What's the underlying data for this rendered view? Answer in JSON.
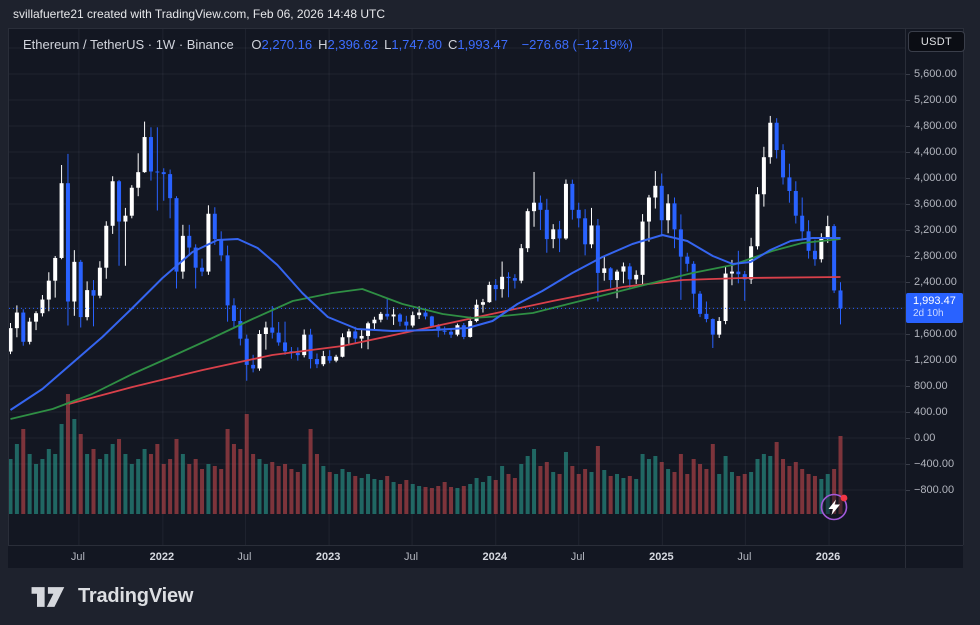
{
  "top_bar": {
    "attribution": "svillafuerte21 created with TradingView.com, Feb 06, 2026 14:48 UTC"
  },
  "header": {
    "title_full": "Ethereum / TetherUS · 1W · Binance",
    "ohlc": [
      {
        "label": "O",
        "value": "2,270.16"
      },
      {
        "label": "H",
        "value": "2,396.62"
      },
      {
        "label": "L",
        "value": "1,747.80"
      },
      {
        "label": "C",
        "value": "1,993.47"
      }
    ],
    "change": "−276.68 (−12.19%)"
  },
  "currency_button": "USDT",
  "price_axis": {
    "ticks": [
      {
        "label": "5,600.00",
        "price": 5600
      },
      {
        "label": "5,200.00",
        "price": 5200
      },
      {
        "label": "4,800.00",
        "price": 4800
      },
      {
        "label": "4,400.00",
        "price": 4400
      },
      {
        "label": "4,000.00",
        "price": 4000
      },
      {
        "label": "3,600.00",
        "price": 3600
      },
      {
        "label": "3,200.00",
        "price": 3200
      },
      {
        "label": "2,800.00",
        "price": 2800
      },
      {
        "label": "2,400.00",
        "price": 2400
      },
      {
        "label": "2,000.00",
        "price": 2000
      },
      {
        "label": "1,600.00",
        "price": 1600
      },
      {
        "label": "1,200.00",
        "price": 1200
      },
      {
        "label": "800.00",
        "price": 800
      },
      {
        "label": "400.00",
        "price": 400
      },
      {
        "label": "0.00",
        "price": 0
      },
      {
        "label": "−400.00",
        "price": -400
      },
      {
        "label": "−800.00",
        "price": -800
      }
    ],
    "last_price_label": {
      "price": "1,993.47",
      "countdown": "2d 10h"
    }
  },
  "time_axis": {
    "ticks": [
      {
        "label": "Jul",
        "bw": 10.71,
        "year": false
      },
      {
        "label": "2022",
        "bw": 23.86,
        "year": true
      },
      {
        "label": "Jul",
        "bw": 36.8,
        "year": false
      },
      {
        "label": "2023",
        "bw": 49.9,
        "year": true
      },
      {
        "label": "Jul",
        "bw": 62.9,
        "year": false
      },
      {
        "label": "2024",
        "bw": 76.0,
        "year": true
      },
      {
        "label": "Jul",
        "bw": 89.0,
        "year": false
      },
      {
        "label": "2025",
        "bw": 102.1,
        "year": true
      },
      {
        "label": "Jul",
        "bw": 115.1,
        "year": false
      },
      {
        "label": "2026",
        "bw": 128.2,
        "year": true
      }
    ]
  },
  "footer": {
    "brand": "TradingView"
  },
  "colors": {
    "background": "#131722",
    "chrome": "#1e222d",
    "border": "#2a2e39",
    "grid": "rgba(240,243,250,0.06)",
    "up": "#ffffff",
    "down": "#2962ff",
    "ma_fast": "#3565f0",
    "ma_mid": "#2f8f44",
    "ma_slow": "#d9404a",
    "vol_up": "rgba(42,157,143,0.6)",
    "vol_down": "rgba(214,77,80,0.55)",
    "accent": "#2962ff",
    "idea_ring": "#a259d9",
    "idea_dot": "#f23645"
  },
  "chart_data": {
    "type": "candlestick",
    "symbol": "Ethereum / TetherUS",
    "exchange": "Binance",
    "interval": "1W",
    "unit": "USDT",
    "visible_price_range": [
      -800,
      5600
    ],
    "last_price": 1993.47,
    "countdown": "2d 10h",
    "grid_prices": [
      6000,
      5600,
      5200,
      4800,
      4400,
      4000,
      3600,
      3200,
      2800,
      2400,
      2000,
      1600,
      1200,
      800,
      400,
      0,
      -400,
      -800
    ],
    "candles": [
      [
        1330,
        1770,
        1290,
        1690
      ],
      [
        1690,
        2040,
        1550,
        1930
      ],
      [
        1930,
        1980,
        1420,
        1480
      ],
      [
        1480,
        1850,
        1440,
        1790
      ],
      [
        1790,
        1950,
        1660,
        1920
      ],
      [
        1920,
        2200,
        1870,
        2130
      ],
      [
        2130,
        2550,
        1950,
        2420
      ],
      [
        2420,
        2800,
        2160,
        2770
      ],
      [
        2770,
        4200,
        2750,
        3920
      ],
      [
        3920,
        4372,
        1730,
        2100
      ],
      [
        2100,
        2890,
        1880,
        2710
      ],
      [
        2710,
        2740,
        1700,
        1860
      ],
      [
        1860,
        2410,
        1810,
        2275
      ],
      [
        2275,
        2430,
        1718,
        2190
      ],
      [
        2190,
        2720,
        2150,
        2620
      ],
      [
        2620,
        3335,
        2450,
        3265
      ],
      [
        3265,
        4027,
        3140,
        3950
      ],
      [
        3950,
        3970,
        2650,
        3330
      ],
      [
        3330,
        3540,
        2650,
        3420
      ],
      [
        3420,
        3890,
        3380,
        3850
      ],
      [
        3850,
        4380,
        3720,
        4090
      ],
      [
        4090,
        4868,
        4080,
        4630
      ],
      [
        4630,
        4780,
        3960,
        4100
      ],
      [
        4100,
        4780,
        3500,
        4090
      ],
      [
        4090,
        4150,
        3650,
        4060
      ],
      [
        4060,
        4130,
        3380,
        3690
      ],
      [
        3690,
        3720,
        2300,
        2560
      ],
      [
        2560,
        3280,
        2450,
        3110
      ],
      [
        3110,
        3280,
        2800,
        2930
      ],
      [
        2930,
        2980,
        2300,
        2620
      ],
      [
        2620,
        2760,
        2490,
        2560
      ],
      [
        2560,
        3580,
        2510,
        3450
      ],
      [
        3450,
        3550,
        2970,
        3060
      ],
      [
        3060,
        3180,
        2720,
        2810
      ],
      [
        2810,
        2960,
        1790,
        2040
      ],
      [
        2040,
        2150,
        1700,
        1800
      ],
      [
        1800,
        1980,
        1424,
        1528
      ],
      [
        1528,
        1590,
        881,
        1125
      ],
      [
        1125,
        1280,
        1010,
        1070
      ],
      [
        1070,
        1660,
        1035,
        1600
      ],
      [
        1600,
        1790,
        1360,
        1700
      ],
      [
        1700,
        2030,
        1530,
        1620
      ],
      [
        1620,
        1785,
        1420,
        1470
      ],
      [
        1470,
        1790,
        1280,
        1335
      ],
      [
        1335,
        1400,
        1220,
        1310
      ],
      [
        1310,
        1395,
        1190,
        1275
      ],
      [
        1275,
        1670,
        1240,
        1590
      ],
      [
        1590,
        1680,
        1070,
        1215
      ],
      [
        1215,
        1300,
        1075,
        1135
      ],
      [
        1135,
        1340,
        1105,
        1260
      ],
      [
        1260,
        1350,
        1150,
        1190
      ],
      [
        1190,
        1280,
        1165,
        1250
      ],
      [
        1250,
        1610,
        1240,
        1550
      ],
      [
        1550,
        1680,
        1450,
        1640
      ],
      [
        1640,
        1710,
        1460,
        1530
      ],
      [
        1530,
        1680,
        1380,
        1570
      ],
      [
        1570,
        1790,
        1365,
        1765
      ],
      [
        1765,
        1865,
        1660,
        1820
      ],
      [
        1820,
        1940,
        1780,
        1910
      ],
      [
        1910,
        2140,
        1820,
        1870
      ],
      [
        1870,
        2010,
        1740,
        1900
      ],
      [
        1900,
        1920,
        1720,
        1790
      ],
      [
        1790,
        1880,
        1620,
        1730
      ],
      [
        1730,
        1945,
        1700,
        1890
      ],
      [
        1890,
        2025,
        1830,
        1930
      ],
      [
        1930,
        1990,
        1825,
        1870
      ],
      [
        1870,
        1880,
        1700,
        1720
      ],
      [
        1720,
        1755,
        1550,
        1650
      ],
      [
        1650,
        1715,
        1590,
        1635
      ],
      [
        1635,
        1680,
        1540,
        1590
      ],
      [
        1590,
        1760,
        1565,
        1735
      ],
      [
        1735,
        1770,
        1520,
        1555
      ],
      [
        1555,
        1865,
        1545,
        1800
      ],
      [
        1800,
        2130,
        1780,
        2050
      ],
      [
        2050,
        2140,
        1930,
        2090
      ],
      [
        2090,
        2405,
        2080,
        2355
      ],
      [
        2355,
        2445,
        2115,
        2290
      ],
      [
        2290,
        2715,
        2160,
        2480
      ],
      [
        2480,
        2550,
        2165,
        2460
      ],
      [
        2460,
        2520,
        2300,
        2420
      ],
      [
        2420,
        2985,
        2380,
        2920
      ],
      [
        2920,
        3530,
        2860,
        3490
      ],
      [
        3490,
        4093,
        3250,
        3620
      ],
      [
        3620,
        3730,
        3200,
        3510
      ],
      [
        3510,
        3680,
        2850,
        3060
      ],
      [
        3060,
        3290,
        2920,
        3210
      ],
      [
        3210,
        3340,
        2860,
        3070
      ],
      [
        3070,
        3977,
        3050,
        3910
      ],
      [
        3910,
        3975,
        3360,
        3510
      ],
      [
        3510,
        3620,
        3240,
        3380
      ],
      [
        3380,
        3520,
        2810,
        2980
      ],
      [
        2980,
        3540,
        2920,
        3270
      ],
      [
        3270,
        3370,
        2100,
        2540
      ],
      [
        2540,
        2790,
        2420,
        2610
      ],
      [
        2610,
        2630,
        2310,
        2430
      ],
      [
        2430,
        2590,
        2150,
        2560
      ],
      [
        2560,
        2700,
        2380,
        2640
      ],
      [
        2640,
        2690,
        2310,
        2440
      ],
      [
        2440,
        2580,
        2370,
        2510
      ],
      [
        2510,
        3445,
        2360,
        3330
      ],
      [
        3330,
        3740,
        3020,
        3700
      ],
      [
        3700,
        4107,
        3530,
        3880
      ],
      [
        3880,
        4070,
        3100,
        3350
      ],
      [
        3350,
        3750,
        3150,
        3610
      ],
      [
        3610,
        3700,
        2920,
        3210
      ],
      [
        3210,
        3440,
        2125,
        2790
      ],
      [
        2790,
        2850,
        2560,
        2680
      ],
      [
        2680,
        2720,
        2000,
        2220
      ],
      [
        2220,
        2260,
        1860,
        1910
      ],
      [
        1910,
        2100,
        1780,
        1830
      ],
      [
        1830,
        1840,
        1385,
        1590
      ],
      [
        1590,
        1860,
        1540,
        1800
      ],
      [
        1800,
        2630,
        1750,
        2530
      ],
      [
        2530,
        2740,
        2350,
        2560
      ],
      [
        2560,
        2880,
        2380,
        2520
      ],
      [
        2520,
        2570,
        2110,
        2440
      ],
      [
        2440,
        3080,
        2370,
        2950
      ],
      [
        2950,
        3860,
        2900,
        3750
      ],
      [
        3750,
        4480,
        3560,
        4320
      ],
      [
        4320,
        4955,
        4220,
        4850
      ],
      [
        4850,
        4920,
        4300,
        4430
      ],
      [
        4430,
        4520,
        3900,
        4010
      ],
      [
        4010,
        4220,
        3620,
        3800
      ],
      [
        3800,
        3950,
        3300,
        3420
      ],
      [
        3420,
        3700,
        3050,
        3180
      ],
      [
        3180,
        3350,
        2760,
        2880
      ],
      [
        2880,
        3050,
        2650,
        2750
      ],
      [
        2750,
        3150,
        2700,
        3080
      ],
      [
        3080,
        3420,
        3000,
        3260
      ],
      [
        3260,
        3290,
        2230,
        2270
      ],
      [
        2270,
        2396.62,
        1747.8,
        1993.47
      ]
    ],
    "volumes": [
      55,
      70,
      85,
      60,
      50,
      55,
      65,
      60,
      90,
      120,
      95,
      80,
      60,
      65,
      55,
      60,
      70,
      75,
      60,
      50,
      55,
      65,
      60,
      70,
      50,
      55,
      75,
      60,
      50,
      55,
      45,
      50,
      48,
      45,
      85,
      70,
      65,
      100,
      60,
      55,
      50,
      52,
      48,
      50,
      45,
      42,
      50,
      85,
      60,
      48,
      42,
      40,
      45,
      42,
      38,
      36,
      40,
      35,
      34,
      38,
      32,
      30,
      34,
      30,
      28,
      27,
      26,
      28,
      32,
      27,
      26,
      28,
      30,
      36,
      32,
      38,
      34,
      48,
      40,
      36,
      50,
      58,
      65,
      48,
      52,
      42,
      40,
      62,
      48,
      40,
      45,
      42,
      68,
      44,
      38,
      40,
      36,
      38,
      35,
      60,
      55,
      58,
      52,
      45,
      42,
      60,
      40,
      55,
      50,
      45,
      70,
      40,
      58,
      42,
      38,
      40,
      42,
      55,
      60,
      58,
      72,
      55,
      48,
      52,
      45,
      40,
      38,
      35,
      40,
      45,
      78
    ],
    "moving_averages": {
      "fast_blue": [
        [
          0,
          431
        ],
        [
          5,
          754
        ],
        [
          9.7,
          1154
        ],
        [
          14.4,
          1554
        ],
        [
          19.1,
          2000
        ],
        [
          23.8,
          2462
        ],
        [
          28.5,
          2862
        ],
        [
          32.4,
          3046
        ],
        [
          35.6,
          3062
        ],
        [
          38.7,
          2923
        ],
        [
          41.8,
          2662
        ],
        [
          45.7,
          2231
        ],
        [
          49.7,
          1862
        ],
        [
          54.3,
          1677
        ],
        [
          59.8,
          1646
        ],
        [
          66.1,
          1662
        ],
        [
          71.6,
          1692
        ],
        [
          75.5,
          1800
        ],
        [
          79.4,
          2062
        ],
        [
          83.3,
          2262
        ],
        [
          88,
          2538
        ],
        [
          92.7,
          2785
        ],
        [
          97.4,
          2985
        ],
        [
          102.1,
          3123
        ],
        [
          106,
          3031
        ],
        [
          110,
          2800
        ],
        [
          113.1,
          2677
        ],
        [
          115.9,
          2708
        ],
        [
          119,
          2892
        ],
        [
          122.2,
          3031
        ],
        [
          125.6,
          3077
        ],
        [
          130,
          3077
        ]
      ],
      "mid_green": [
        [
          0,
          292
        ],
        [
          6.6,
          446
        ],
        [
          12.8,
          677
        ],
        [
          19.1,
          985
        ],
        [
          25.4,
          1262
        ],
        [
          31.6,
          1538
        ],
        [
          37.9,
          1831
        ],
        [
          44.2,
          2108
        ],
        [
          50.4,
          2231
        ],
        [
          55.1,
          2292
        ],
        [
          61.4,
          2062
        ],
        [
          67.7,
          1908
        ],
        [
          72.4,
          1846
        ],
        [
          77.1,
          1877
        ],
        [
          81.8,
          1923
        ],
        [
          88,
          2077
        ],
        [
          94.3,
          2231
        ],
        [
          100.5,
          2385
        ],
        [
          106.8,
          2538
        ],
        [
          113.1,
          2662
        ],
        [
          119.3,
          2877
        ],
        [
          124,
          3000
        ],
        [
          130,
          3062
        ]
      ],
      "slow_red": [
        [
          9.1,
          523
        ],
        [
          19.1,
          785
        ],
        [
          30.1,
          1046
        ],
        [
          41,
          1277
        ],
        [
          52,
          1415
        ],
        [
          63,
          1646
        ],
        [
          73.9,
          1877
        ],
        [
          84.9,
          2108
        ],
        [
          95.9,
          2323
        ],
        [
          105.3,
          2431
        ],
        [
          114.6,
          2462
        ],
        [
          130,
          2477
        ]
      ]
    }
  }
}
